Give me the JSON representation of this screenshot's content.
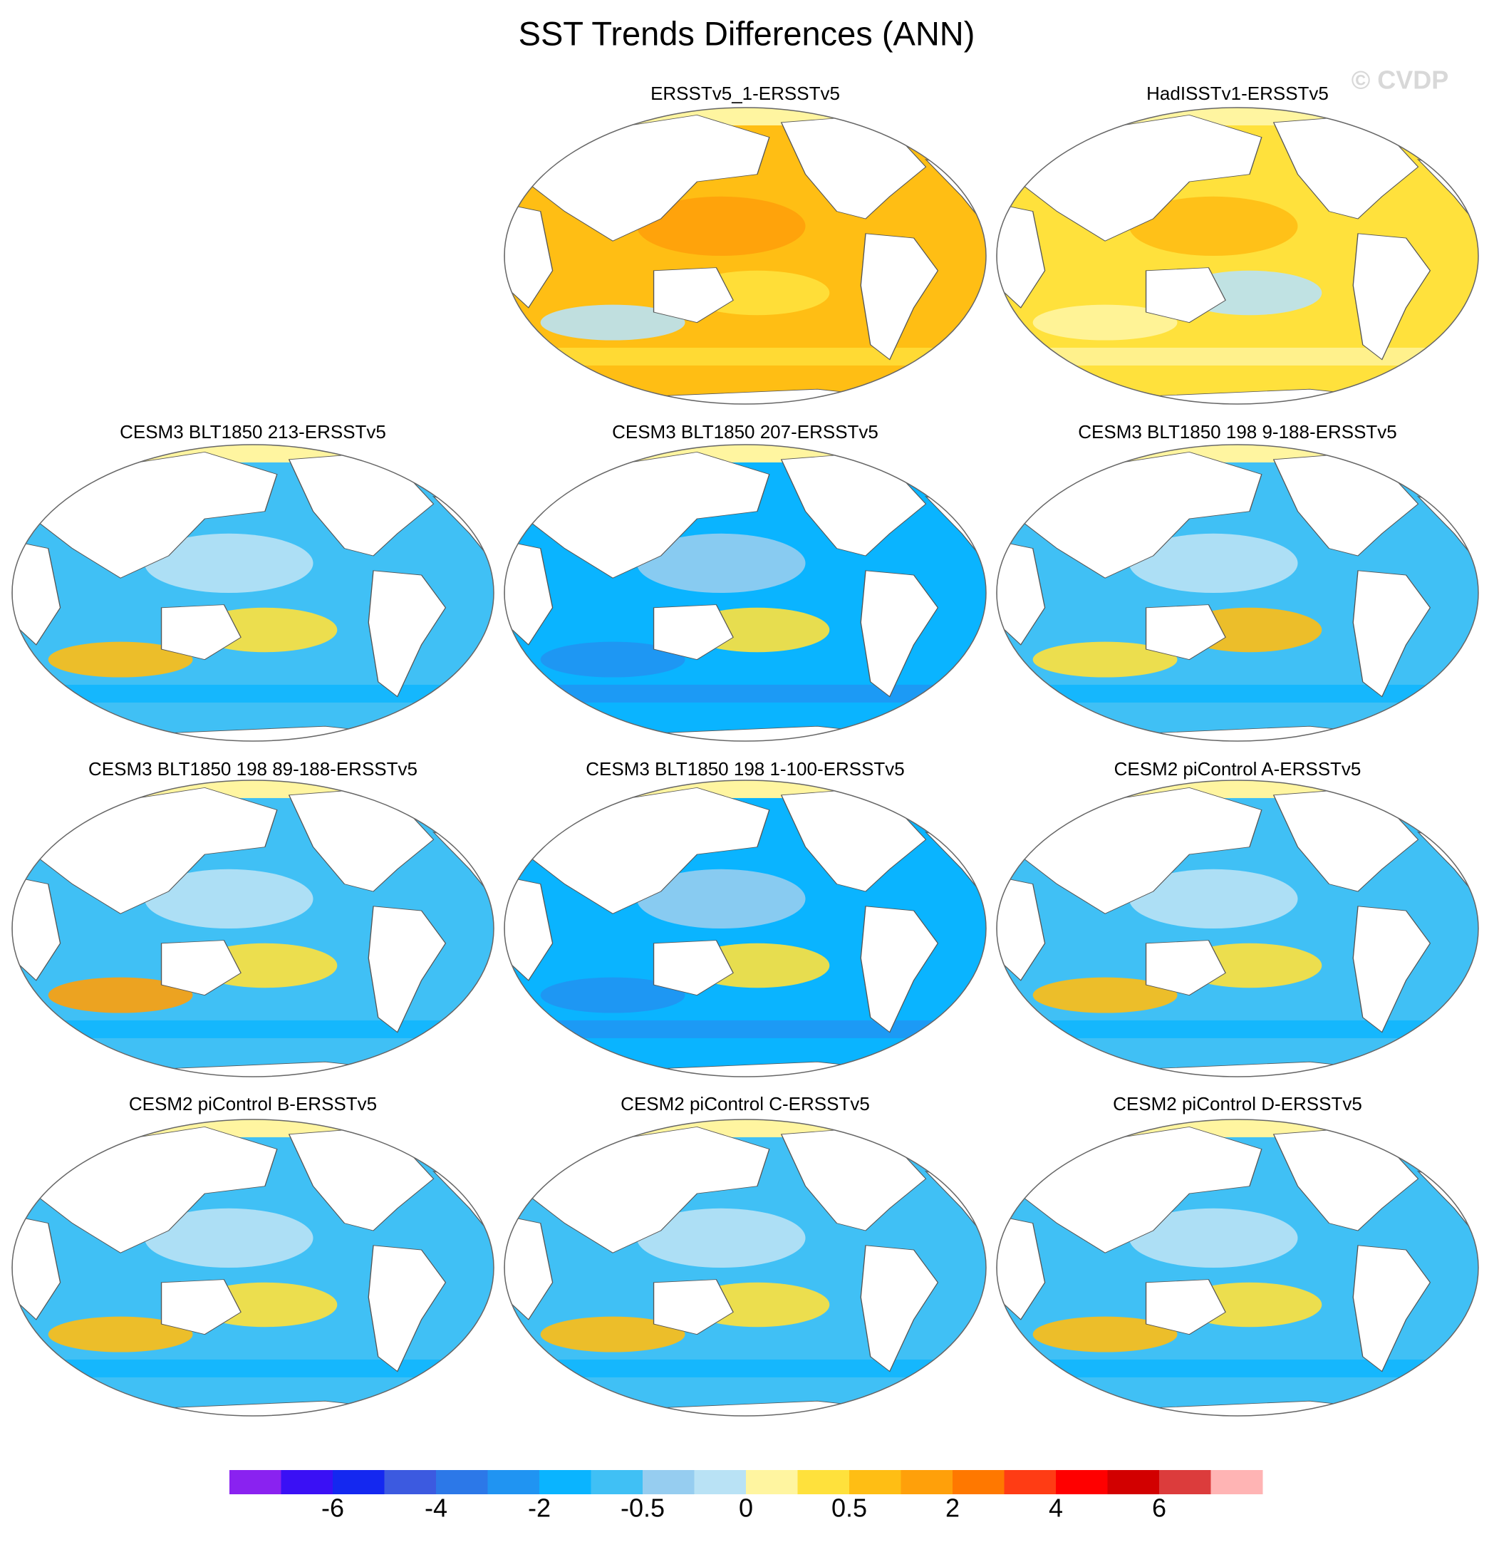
{
  "header": {
    "title": "SST Trends Differences (ANN)",
    "watermark": "© CVDP"
  },
  "panels": [
    {
      "title": "ERSSTv5_1-ERSSTv5"
    },
    {
      "title": "HadISSTv1-ERSSTv5"
    },
    {
      "title": "CESM3 BLT1850 213-ERSSTv5"
    },
    {
      "title": "CESM3 BLT1850 207-ERSSTv5"
    },
    {
      "title": "CESM3 BLT1850 198 9-188-ERSSTv5"
    },
    {
      "title": "CESM3 BLT1850 198 89-188-ERSSTv5"
    },
    {
      "title": "CESM3 BLT1850 198 1-100-ERSSTv5"
    },
    {
      "title": "CESM2 piControl A-ERSSTv5"
    },
    {
      "title": "CESM2 piControl B-ERSSTv5"
    },
    {
      "title": "CESM2 piControl C-ERSSTv5"
    },
    {
      "title": "CESM2 piControl D-ERSSTv5"
    }
  ],
  "colorbar": {
    "colors": [
      "#8a22f0",
      "#3a10f5",
      "#1428f0",
      "#3c5ae0",
      "#2c78e8",
      "#2094f2",
      "#0ab4ff",
      "#40c0f5",
      "#96cdf0",
      "#b9e2f5",
      "#fff5a0",
      "#ffe13c",
      "#ffbe14",
      "#ffa00a",
      "#ff7800",
      "#ff3c14",
      "#ff0000",
      "#d20000",
      "#dc3c3c",
      "#ffb4b4"
    ],
    "labels": [
      -6,
      -4,
      -2,
      -0.5,
      0,
      0.5,
      2,
      4,
      6
    ]
  }
}
